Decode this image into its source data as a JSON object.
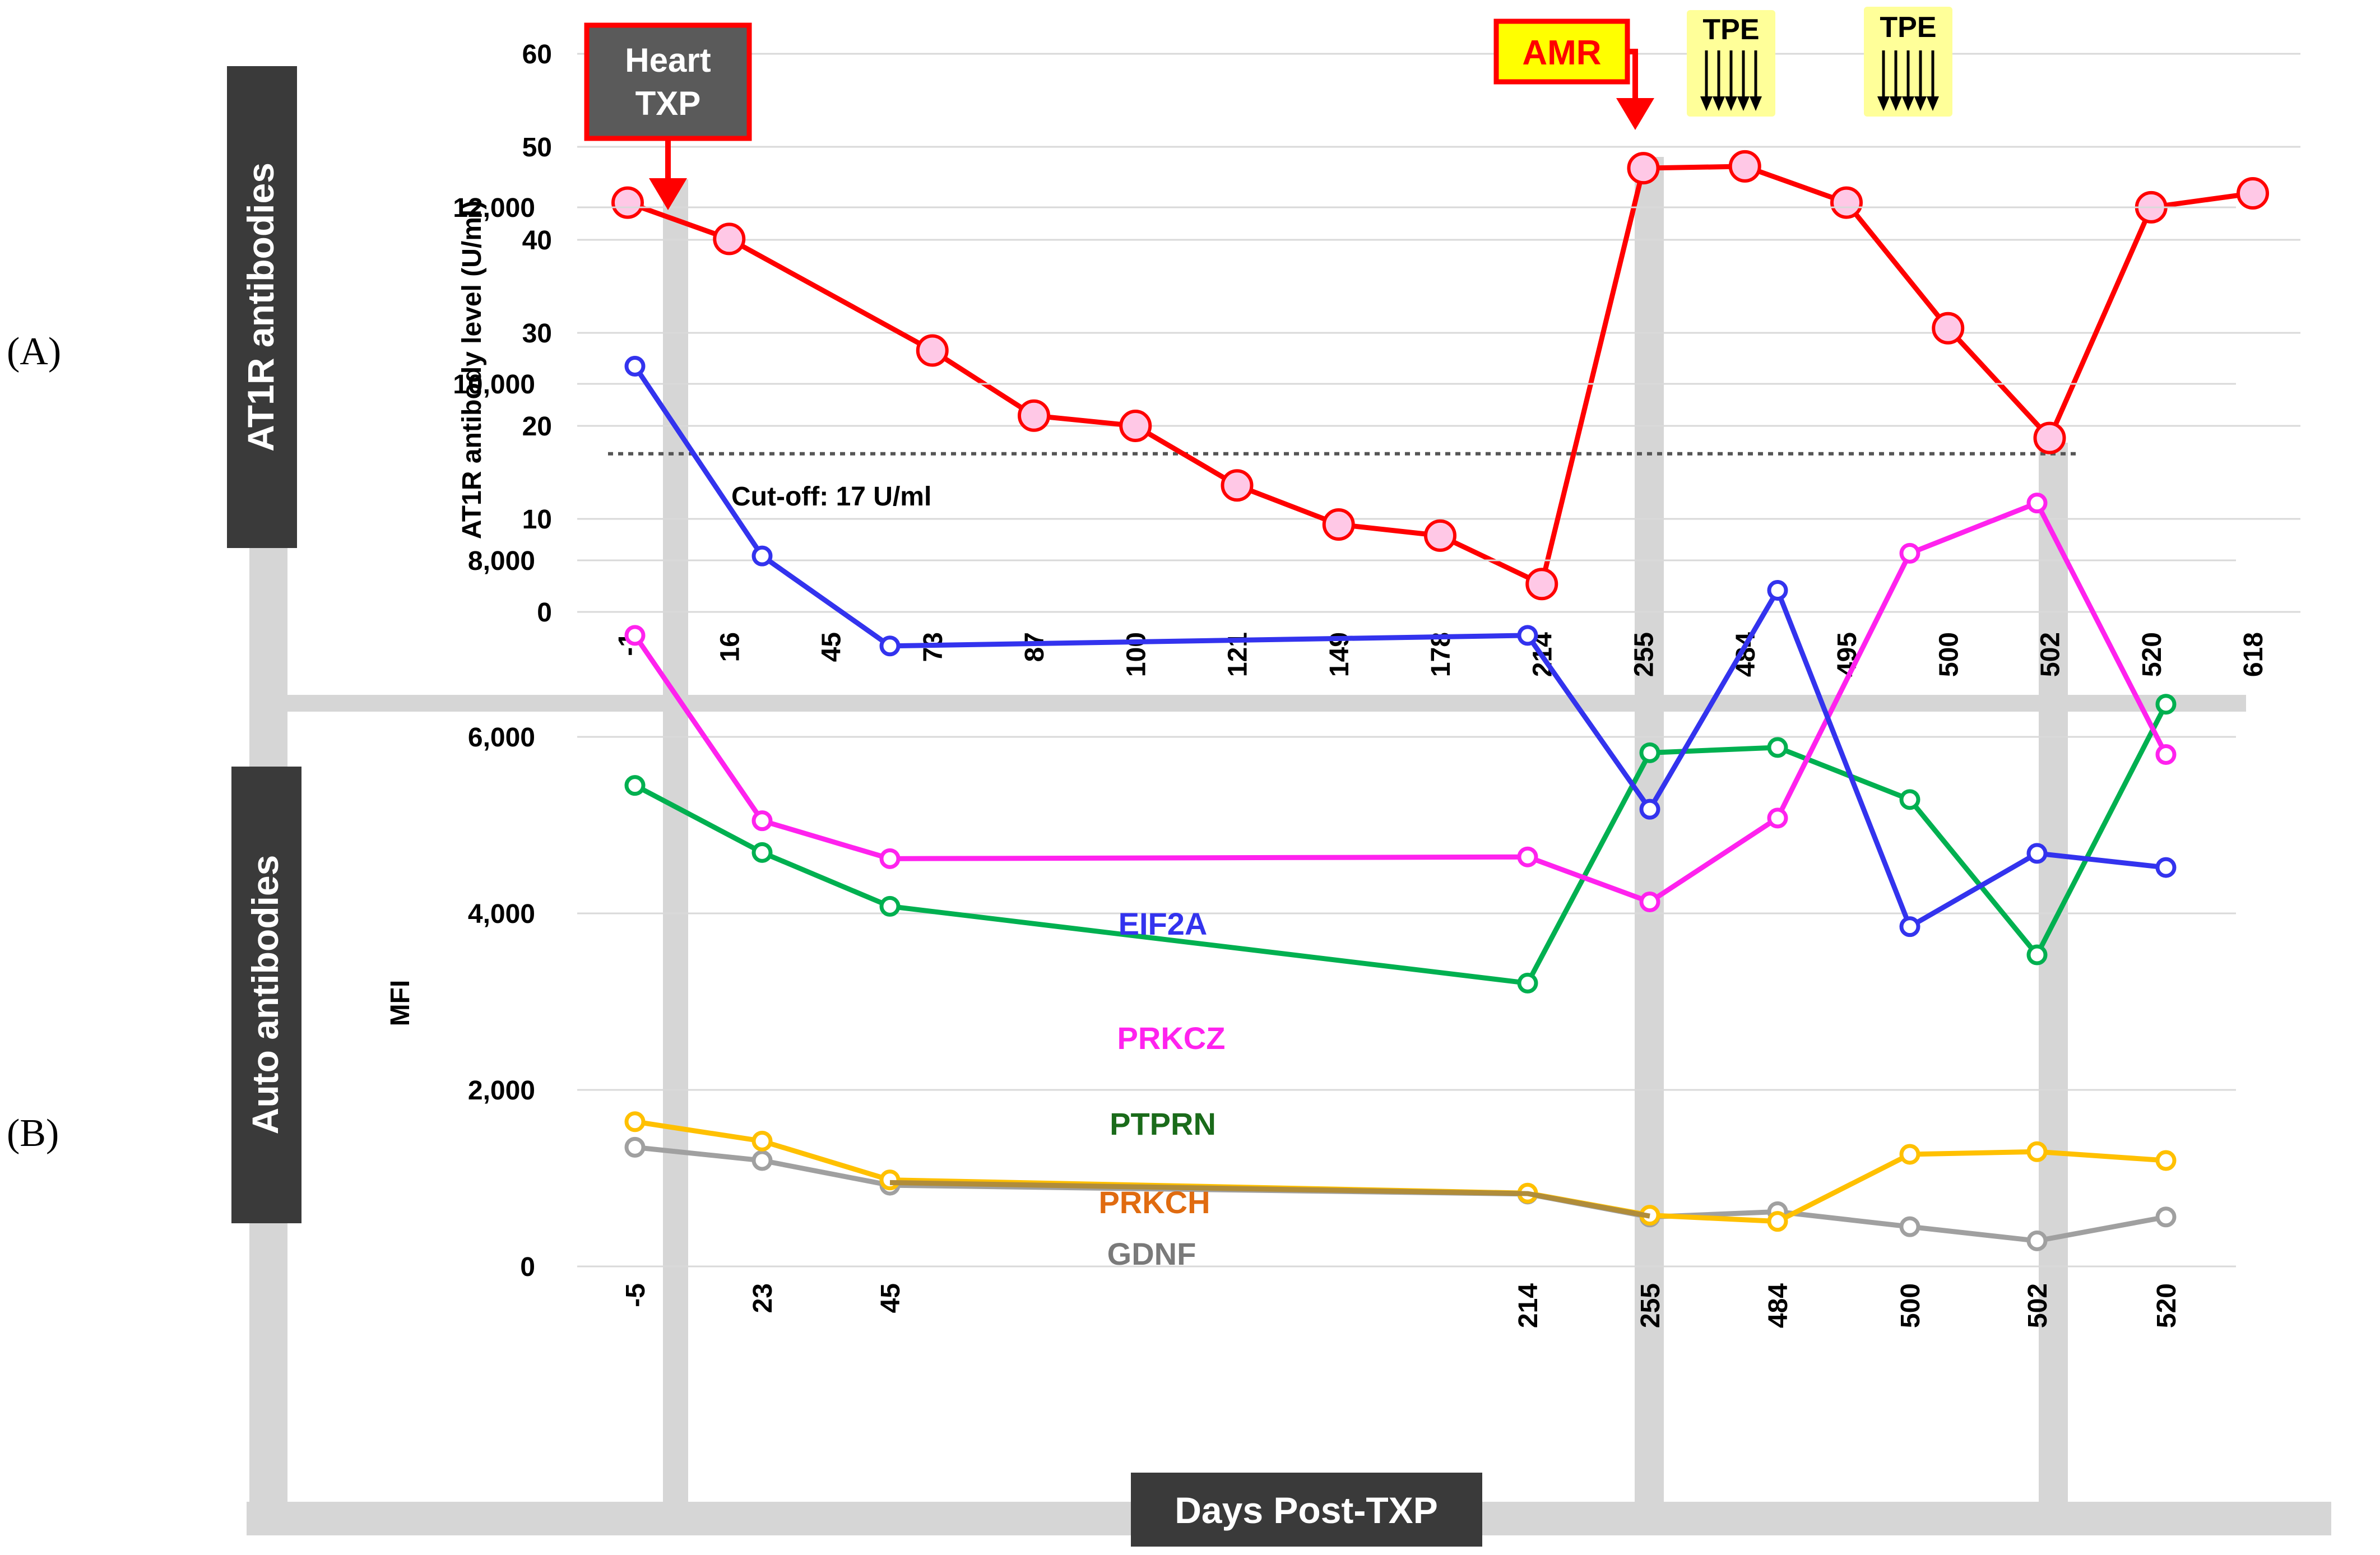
{
  "panels": {
    "a_letter": "(A)",
    "b_letter": "(B)",
    "a_side_label": "AT1R antibodies",
    "b_side_label": "Auto antibodies",
    "bottom_label": "Days Post-TXP"
  },
  "colors": {
    "at1r_line": "#ff0000",
    "at1r_marker": "#ffc8e6",
    "eif2a": "#3333ee",
    "prkcz": "#ff22ee",
    "ptprn": "#00b050",
    "prkch": "#ffc000",
    "gdnf": "#a0a0a0",
    "side_box": "#3a3a3a",
    "band": "#d6d6d6",
    "tpe_fill": "#ffff99",
    "amr_fill": "#ffff00"
  },
  "annotations": {
    "heart_txp": [
      "Heart",
      "TXP"
    ],
    "amr": "AMR",
    "tpe_1": "TPE",
    "tpe_2": "TPE",
    "cutoff_label": "Cut-off:  17 U/ml"
  },
  "chart_data": [
    {
      "type": "line",
      "panel": "A",
      "title": "",
      "xlabel": "",
      "ylabel": "AT1R antibody level  (U/ml)",
      "categories": [
        "-1",
        "16",
        "45",
        "73",
        "87",
        "100",
        "121",
        "149",
        "178",
        "214",
        "255",
        "484",
        "495",
        "500",
        "502",
        "520",
        "618"
      ],
      "series": [
        {
          "name": "AT1R antibody level",
          "points": [
            {
              "x": "-1",
              "y": 44
            },
            {
              "x": "16",
              "y": 40.1
            },
            {
              "x": "73",
              "y": 28.1
            },
            {
              "x": "87",
              "y": 21.1
            },
            {
              "x": "100",
              "y": 20
            },
            {
              "x": "121",
              "y": 13.6
            },
            {
              "x": "149",
              "y": 9.4
            },
            {
              "x": "178",
              "y": 8.2
            },
            {
              "x": "214",
              "y": 3
            },
            {
              "x": "255",
              "y": 47.7
            },
            {
              "x": "484",
              "y": 47.9
            },
            {
              "x": "495",
              "y": 44
            },
            {
              "x": "500",
              "y": 30.5
            },
            {
              "x": "502",
              "y": 18.7
            },
            {
              "x": "520",
              "y": 43.5
            },
            {
              "x": "618",
              "y": 45
            }
          ]
        }
      ],
      "cutoff": 17,
      "ylim": [
        0,
        60
      ],
      "yticks": [
        "0",
        "10",
        "20",
        "30",
        "40",
        "50",
        "60"
      ],
      "grid": true
    },
    {
      "type": "line",
      "panel": "B",
      "title": "",
      "xlabel": "",
      "ylabel": "MFI",
      "categories": [
        "-5",
        "23",
        "45",
        "214",
        "255",
        "484",
        "500",
        "502",
        "520"
      ],
      "x_values": [
        -5,
        23,
        45,
        214,
        255,
        484,
        500,
        502,
        520
      ],
      "series": [
        {
          "name": "EIF2A",
          "values": [
            10200,
            8050,
            7030,
            7150,
            5180,
            7660,
            3850,
            4680,
            4520
          ]
        },
        {
          "name": "PRKCZ",
          "values": [
            7150,
            5050,
            4620,
            4640,
            4130,
            5080,
            8080,
            8650,
            5800
          ]
        },
        {
          "name": "PTPRN",
          "values": [
            5450,
            4690,
            4080,
            3210,
            5820,
            5880,
            5290,
            3530,
            6370
          ]
        },
        {
          "name": "PRKCH",
          "values": [
            1640,
            1420,
            980,
            830,
            580,
            510,
            1270,
            1300,
            1200
          ]
        },
        {
          "name": "GDNF",
          "values": [
            1350,
            1200,
            920,
            820,
            560,
            620,
            450,
            290,
            560
          ]
        }
      ],
      "ylim": [
        0,
        12000
      ],
      "yticks": [
        "0",
        "2,000",
        "4,000",
        "6,000",
        "8,000",
        "10,000",
        "12,000"
      ],
      "grid": true
    }
  ]
}
